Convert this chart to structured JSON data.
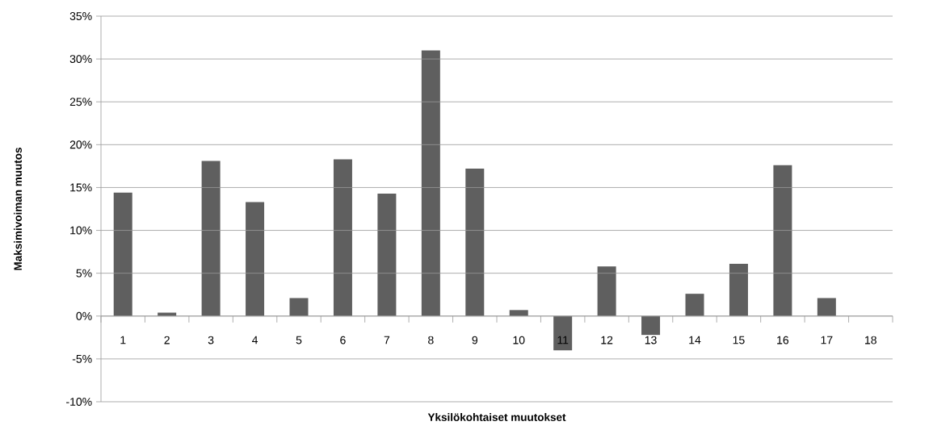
{
  "chart_data": {
    "type": "bar",
    "xlabel": "Yksilökohtaiset muutokset",
    "ylabel": "Maksimivoiman muutos",
    "categories": [
      "1",
      "2",
      "3",
      "4",
      "5",
      "6",
      "7",
      "8",
      "9",
      "10",
      "11",
      "12",
      "13",
      "14",
      "15",
      "16",
      "17",
      "18"
    ],
    "values": [
      14.4,
      0.4,
      18.1,
      13.3,
      2.1,
      18.3,
      14.3,
      31.0,
      17.2,
      0.7,
      -4.0,
      5.8,
      -2.2,
      2.6,
      6.1,
      17.6,
      2.1,
      0
    ],
    "color": "#5f5f5f",
    "ylim": [
      -10,
      35
    ],
    "yticks": [
      {
        "value": -10,
        "label": "-10%"
      },
      {
        "value": -5,
        "label": "-5%"
      },
      {
        "value": 0,
        "label": "0%"
      },
      {
        "value": 5,
        "label": "5%"
      },
      {
        "value": 10,
        "label": "10%"
      },
      {
        "value": 15,
        "label": "15%"
      },
      {
        "value": 20,
        "label": "20%"
      },
      {
        "value": 25,
        "label": "25%"
      },
      {
        "value": 30,
        "label": "30%"
      },
      {
        "value": 35,
        "label": "35%"
      }
    ],
    "grid": "y"
  }
}
